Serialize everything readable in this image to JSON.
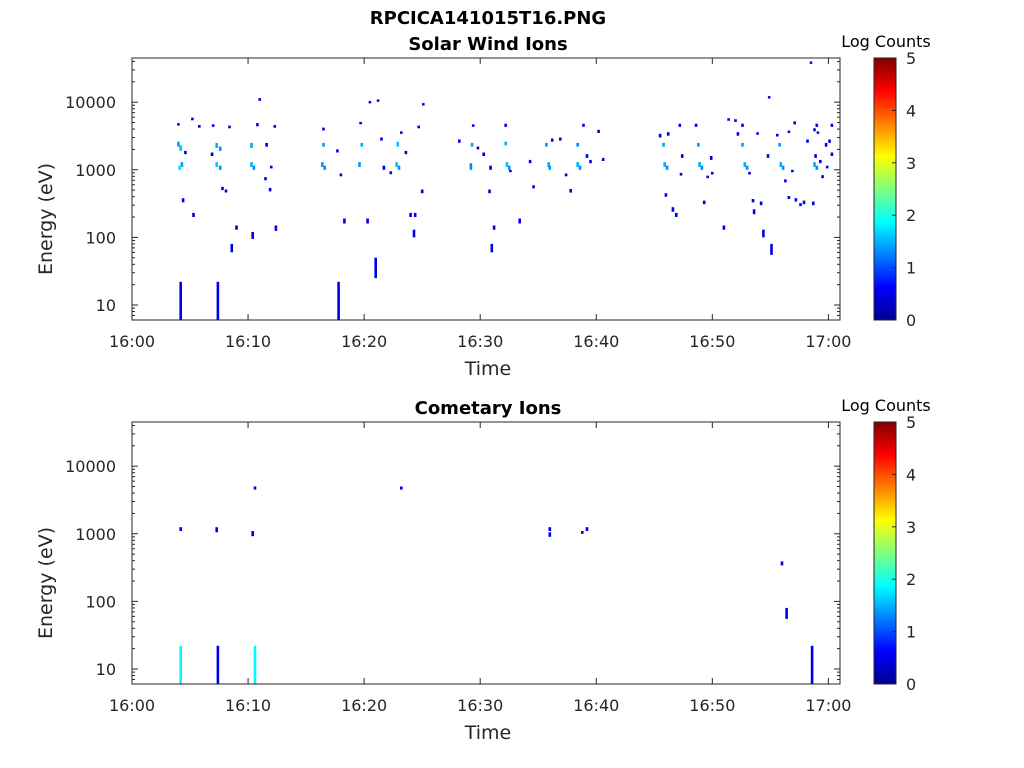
{
  "figure": {
    "title": "RPCICA141015T16.PNG"
  },
  "chart_data": [
    {
      "type": "heatmap",
      "title": "Solar Wind Ions",
      "xlabel": "Time",
      "ylabel": "Energy (eV)",
      "xlim": [
        "16:00",
        "17:01"
      ],
      "ylim": [
        6,
        45000
      ],
      "y_scale": "log",
      "x_ticks": [
        "16:00",
        "16:10",
        "16:20",
        "16:30",
        "16:40",
        "16:50",
        "17:00"
      ],
      "y_ticks": [
        10,
        100,
        1000,
        10000
      ],
      "y_tick_labels": [
        "10",
        "100",
        "1000",
        "10000"
      ],
      "colorbar": {
        "label": "Log Counts",
        "min": 0,
        "max": 5,
        "ticks": [
          "0",
          "1",
          "2",
          "3",
          "4",
          "5"
        ],
        "colormap": "jet"
      },
      "cells": [
        [
          4.2,
          6,
          22,
          0.0
        ],
        [
          7.4,
          6,
          22,
          0.0
        ],
        [
          17.8,
          6,
          22,
          0.0
        ],
        [
          4.0,
          2200,
          2600,
          1.0
        ],
        [
          4.2,
          1900,
          2300,
          1.2
        ],
        [
          4.3,
          1100,
          1300,
          1.0
        ],
        [
          4.1,
          1000,
          1150,
          1.3
        ],
        [
          4.4,
          330,
          380,
          0.0
        ],
        [
          5.3,
          200,
          230,
          0.0
        ],
        [
          4.6,
          1700,
          1900,
          0.0
        ],
        [
          5.8,
          4200,
          4600,
          0.0
        ],
        [
          4.0,
          4500,
          4900,
          0.0
        ],
        [
          7.3,
          2100,
          2500,
          1.1
        ],
        [
          7.6,
          1900,
          2200,
          0.9
        ],
        [
          7.3,
          1100,
          1300,
          1.2
        ],
        [
          7.6,
          1000,
          1150,
          0.9
        ],
        [
          7.8,
          500,
          560,
          0.0
        ],
        [
          8.1,
          460,
          510,
          0.0
        ],
        [
          8.4,
          4100,
          4500,
          0.0
        ],
        [
          6.9,
          1600,
          1800,
          0.0
        ],
        [
          5.2,
          5400,
          5900,
          0.0
        ],
        [
          7.0,
          4300,
          4700,
          0.0
        ],
        [
          8.6,
          60,
          80,
          0.0
        ],
        [
          9.0,
          130,
          150,
          0.0
        ],
        [
          10.4,
          95,
          120,
          0.0
        ],
        [
          10.8,
          4400,
          4900,
          0.0
        ],
        [
          11.0,
          10500,
          11500,
          0.0
        ],
        [
          12.3,
          4200,
          4600,
          0.0
        ],
        [
          12.4,
          125,
          150,
          0.0
        ],
        [
          10.3,
          2100,
          2500,
          1.1
        ],
        [
          10.3,
          1100,
          1300,
          1.1
        ],
        [
          10.5,
          1000,
          1150,
          0.9
        ],
        [
          11.6,
          2200,
          2500,
          0.0
        ],
        [
          11.5,
          700,
          780,
          0.0
        ],
        [
          12.0,
          1050,
          1150,
          0.0
        ],
        [
          11.9,
          480,
          540,
          0.0
        ],
        [
          16.5,
          3800,
          4200,
          0.0
        ],
        [
          16.5,
          2200,
          2500,
          1.0
        ],
        [
          16.4,
          1100,
          1300,
          1.0
        ],
        [
          16.6,
          1000,
          1150,
          0.9
        ],
        [
          17.7,
          1800,
          2000,
          0.0
        ],
        [
          18.0,
          800,
          880,
          0.0
        ],
        [
          18.3,
          160,
          190,
          0.0
        ],
        [
          19.6,
          1100,
          1300,
          1.0
        ],
        [
          19.8,
          2200,
          2500,
          1.1
        ],
        [
          20.3,
          160,
          190,
          0.0
        ],
        [
          20.5,
          9600,
          10400,
          0.0
        ],
        [
          21.0,
          25,
          50,
          0.0
        ],
        [
          21.2,
          10300,
          11000,
          0.0
        ],
        [
          19.7,
          4700,
          5100,
          0.0
        ],
        [
          21.7,
          1000,
          1150,
          0.0
        ],
        [
          21.5,
          2700,
          3000,
          0.0
        ],
        [
          22.3,
          860,
          950,
          0.0
        ],
        [
          22.9,
          2200,
          2600,
          1.2
        ],
        [
          22.8,
          1100,
          1300,
          1.2
        ],
        [
          23.0,
          1000,
          1150,
          0.9
        ],
        [
          23.2,
          3400,
          3700,
          0.0
        ],
        [
          23.6,
          1700,
          1900,
          0.0
        ],
        [
          24.0,
          200,
          230,
          0.0
        ],
        [
          24.4,
          200,
          230,
          0.0
        ],
        [
          24.3,
          100,
          130,
          0.0
        ],
        [
          24.7,
          4100,
          4500,
          0.0
        ],
        [
          25.1,
          9000,
          9700,
          0.0
        ],
        [
          25.0,
          450,
          510,
          0.0
        ],
        [
          28.2,
          2500,
          2800,
          0.0
        ],
        [
          29.4,
          4300,
          4700,
          0.0
        ],
        [
          29.3,
          2200,
          2500,
          1.0
        ],
        [
          29.2,
          1000,
          1250,
          0.9
        ],
        [
          29.8,
          2000,
          2200,
          0.0
        ],
        [
          30.3,
          1600,
          1800,
          0.0
        ],
        [
          31.0,
          60,
          80,
          0.0
        ],
        [
          30.8,
          450,
          510,
          0.0
        ],
        [
          31.2,
          130,
          150,
          0.0
        ],
        [
          30.9,
          1000,
          1150,
          0.0
        ],
        [
          32.2,
          2300,
          2600,
          1.1
        ],
        [
          32.3,
          1100,
          1300,
          1.2
        ],
        [
          32.5,
          1000,
          1150,
          0.9
        ],
        [
          32.2,
          4300,
          4800,
          0.0
        ],
        [
          32.6,
          920,
          1000,
          0.0
        ],
        [
          33.4,
          160,
          190,
          0.0
        ],
        [
          34.3,
          1250,
          1400,
          0.0
        ],
        [
          34.6,
          530,
          590,
          0.0
        ],
        [
          35.7,
          2200,
          2500,
          1.0
        ],
        [
          35.9,
          1100,
          1300,
          1.1
        ],
        [
          36.0,
          1000,
          1150,
          0.9
        ],
        [
          36.2,
          2600,
          2900,
          0.0
        ],
        [
          36.9,
          2700,
          3000,
          0.0
        ],
        [
          37.4,
          800,
          880,
          0.0
        ],
        [
          37.8,
          460,
          520,
          0.0
        ],
        [
          38.4,
          1100,
          1300,
          1.1
        ],
        [
          38.6,
          1000,
          1150,
          0.9
        ],
        [
          38.4,
          2200,
          2500,
          0.9
        ],
        [
          38.9,
          4300,
          4800,
          0.0
        ],
        [
          39.2,
          1500,
          1700,
          0.0
        ],
        [
          40.2,
          3500,
          3900,
          0.0
        ],
        [
          40.6,
          1350,
          1500,
          0.0
        ],
        [
          39.5,
          1250,
          1400,
          0.0
        ],
        [
          45.5,
          3000,
          3400,
          0.0
        ],
        [
          45.8,
          2200,
          2500,
          1.0
        ],
        [
          45.9,
          1100,
          1300,
          1.1
        ],
        [
          46.1,
          1000,
          1150,
          0.9
        ],
        [
          46.2,
          3200,
          3600,
          0.0
        ],
        [
          46.0,
          400,
          450,
          0.0
        ],
        [
          46.6,
          240,
          280,
          0.0
        ],
        [
          46.9,
          200,
          230,
          0.0
        ],
        [
          47.3,
          820,
          900,
          0.0
        ],
        [
          47.2,
          4300,
          4800,
          0.0
        ],
        [
          47.4,
          1500,
          1700,
          0.0
        ],
        [
          48.6,
          4300,
          4800,
          0.0
        ],
        [
          48.8,
          2200,
          2500,
          1.0
        ],
        [
          48.9,
          1100,
          1300,
          1.1
        ],
        [
          49.1,
          1000,
          1150,
          0.9
        ],
        [
          49.6,
          750,
          820,
          0.0
        ],
        [
          49.3,
          310,
          350,
          0.0
        ],
        [
          49.9,
          1400,
          1600,
          0.0
        ],
        [
          50.0,
          850,
          930,
          0.0
        ],
        [
          51.0,
          130,
          150,
          0.0
        ],
        [
          51.4,
          5300,
          5800,
          0.0
        ],
        [
          52.0,
          5100,
          5600,
          0.0
        ],
        [
          52.6,
          4300,
          4800,
          0.0
        ],
        [
          52.2,
          3200,
          3600,
          0.0
        ],
        [
          52.6,
          2200,
          2500,
          1.0
        ],
        [
          52.8,
          1100,
          1300,
          1.1
        ],
        [
          53.0,
          1000,
          1150,
          0.9
        ],
        [
          53.2,
          850,
          930,
          0.0
        ],
        [
          53.5,
          330,
          370,
          0.0
        ],
        [
          53.6,
          220,
          260,
          0.0
        ],
        [
          53.9,
          3300,
          3600,
          0.0
        ],
        [
          54.2,
          300,
          340,
          0.0
        ],
        [
          54.4,
          100,
          130,
          0.0
        ],
        [
          54.8,
          1500,
          1700,
          0.0
        ],
        [
          54.9,
          11500,
          12300,
          0.0
        ],
        [
          55.1,
          55,
          80,
          0.0
        ],
        [
          55.6,
          3100,
          3400,
          0.0
        ],
        [
          55.8,
          2200,
          2500,
          1.0
        ],
        [
          55.9,
          1100,
          1300,
          1.1
        ],
        [
          56.1,
          1000,
          1150,
          0.9
        ],
        [
          56.3,
          650,
          720,
          0.0
        ],
        [
          56.6,
          370,
          410,
          0.0
        ],
        [
          56.9,
          920,
          1000,
          0.0
        ],
        [
          57.1,
          4700,
          5200,
          0.0
        ],
        [
          56.6,
          3500,
          3800,
          0.0
        ],
        [
          57.2,
          340,
          380,
          0.0
        ],
        [
          57.6,
          290,
          320,
          0.0
        ],
        [
          57.9,
          310,
          350,
          0.0
        ],
        [
          58.2,
          2500,
          2800,
          0.0
        ],
        [
          58.5,
          38000,
          40000,
          0.0
        ],
        [
          58.7,
          300,
          340,
          0.0
        ],
        [
          59.0,
          4300,
          4800,
          0.0
        ],
        [
          58.8,
          3700,
          4100,
          0.0
        ],
        [
          59.1,
          3400,
          3700,
          0.0
        ],
        [
          58.9,
          1500,
          1700,
          0.0
        ],
        [
          58.8,
          1100,
          1300,
          1.1
        ],
        [
          59.0,
          1000,
          1150,
          0.9
        ],
        [
          59.3,
          1250,
          1400,
          0.0
        ],
        [
          59.5,
          750,
          830,
          0.0
        ],
        [
          59.8,
          2200,
          2500,
          0.0
        ],
        [
          60.3,
          4300,
          4800,
          0.0
        ],
        [
          60.3,
          1600,
          1800,
          0.0
        ],
        [
          59.9,
          1050,
          1150,
          0.0
        ],
        [
          60.1,
          2500,
          2800,
          0.0
        ]
      ]
    },
    {
      "type": "heatmap",
      "title": "Cometary Ions",
      "xlabel": "Time",
      "ylabel": "Energy (eV)",
      "xlim": [
        "16:00",
        "17:01"
      ],
      "ylim": [
        6,
        45000
      ],
      "y_scale": "log",
      "x_ticks": [
        "16:00",
        "16:10",
        "16:20",
        "16:30",
        "16:40",
        "16:50",
        "17:00"
      ],
      "y_ticks": [
        10,
        100,
        1000,
        10000
      ],
      "y_tick_labels": [
        "10",
        "100",
        "1000",
        "10000"
      ],
      "colorbar": {
        "label": "Log Counts",
        "min": 0,
        "max": 5,
        "ticks": [
          "0",
          "1",
          "2",
          "3",
          "4",
          "5"
        ],
        "colormap": "jet"
      },
      "cells": [
        [
          4.2,
          6,
          22,
          1.5
        ],
        [
          7.4,
          6,
          22,
          0.0
        ],
        [
          10.6,
          6,
          22,
          1.5
        ],
        [
          58.6,
          6,
          22,
          0.0
        ],
        [
          4.2,
          1100,
          1250,
          0.0
        ],
        [
          7.3,
          1050,
          1250,
          0.0
        ],
        [
          10.4,
          920,
          1100,
          0.0
        ],
        [
          10.6,
          4500,
          5000,
          0.0
        ],
        [
          23.2,
          4500,
          5000,
          0.0
        ],
        [
          36.0,
          900,
          1050,
          0.0
        ],
        [
          36.0,
          1100,
          1250,
          0.0
        ],
        [
          38.8,
          1000,
          1100,
          0.0
        ],
        [
          39.2,
          1100,
          1250,
          0.0
        ],
        [
          56.0,
          340,
          390,
          0.0
        ],
        [
          56.4,
          55,
          80,
          0.0
        ]
      ]
    }
  ]
}
